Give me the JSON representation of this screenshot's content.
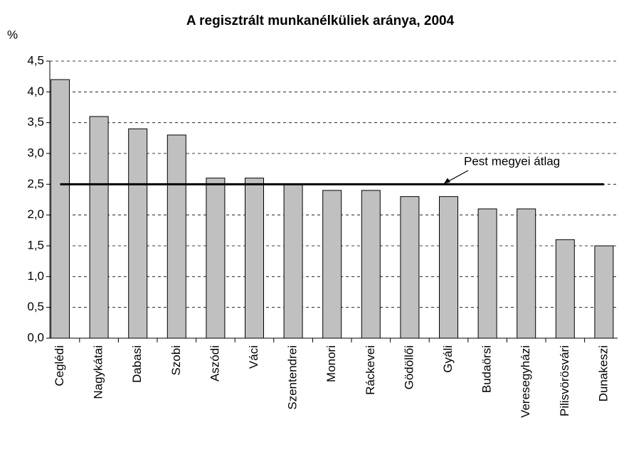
{
  "chart_data": {
    "type": "bar",
    "title": "A regisztrált munkanélküliek aránya, 2004",
    "y_label": "%",
    "categories": [
      "Ceglédi",
      "Nagykátai",
      "Dabasi",
      "Szobi",
      "Aszódi",
      "Váci",
      "Szentendrei",
      "Monori",
      "Ráckevei",
      "Gödöllői",
      "Gyáli",
      "Budaörsi",
      "Veresegyházi",
      "Pilisvörösvári",
      "Dunakeszi"
    ],
    "values": [
      4.2,
      3.6,
      3.4,
      3.3,
      2.6,
      2.6,
      2.5,
      2.4,
      2.4,
      2.3,
      2.3,
      2.1,
      2.1,
      1.6,
      1.5
    ],
    "color": "#c0c0c0",
    "ylim": [
      0,
      4.5
    ],
    "yticks": [
      {
        "value": 0,
        "label": "0,0"
      },
      {
        "value": 0.5,
        "label": "0,5"
      },
      {
        "value": 1,
        "label": "1,0"
      },
      {
        "value": 1.5,
        "label": "1,5"
      },
      {
        "value": 2,
        "label": "2,0"
      },
      {
        "value": 2.5,
        "label": "2,5"
      },
      {
        "value": 3,
        "label": "3,0"
      },
      {
        "value": 3.5,
        "label": "3,5"
      },
      {
        "value": 4,
        "label": "4,0"
      },
      {
        "value": 4.5,
        "label": "4,5"
      }
    ],
    "grid": true,
    "reference_line": {
      "value": 2.5,
      "label": "Pest megyei átlag"
    }
  }
}
